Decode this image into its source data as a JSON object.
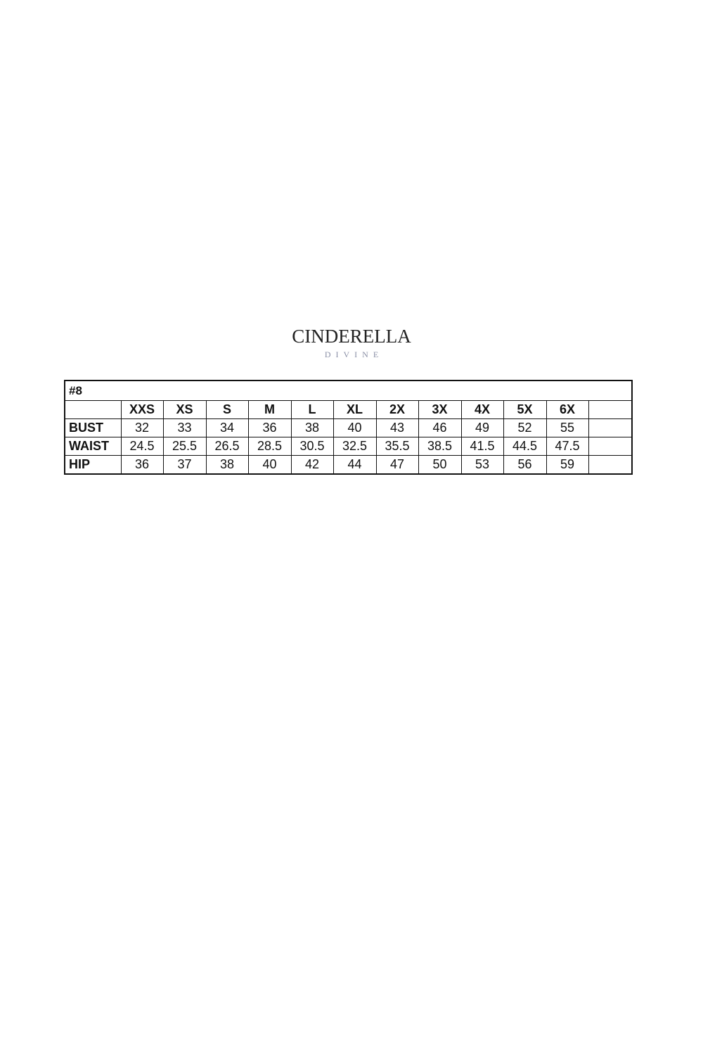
{
  "logo": {
    "brand": "CINDERELLA",
    "sub": "DIVINE"
  },
  "chart_data": {
    "type": "table",
    "title": "#8",
    "columns": [
      "XXS",
      "XS",
      "S",
      "M",
      "L",
      "XL",
      "2X",
      "3X",
      "4X",
      "5X",
      "6X",
      ""
    ],
    "rows": [
      {
        "label": "BUST",
        "values": [
          "32",
          "33",
          "34",
          "36",
          "38",
          "40",
          "43",
          "46",
          "49",
          "52",
          "55",
          ""
        ]
      },
      {
        "label": "WAIST",
        "values": [
          "24.5",
          "25.5",
          "26.5",
          "28.5",
          "30.5",
          "32.5",
          "35.5",
          "38.5",
          "41.5",
          "44.5",
          "47.5",
          ""
        ]
      },
      {
        "label": "HIP",
        "values": [
          "36",
          "37",
          "38",
          "40",
          "42",
          "44",
          "47",
          "50",
          "53",
          "56",
          "59",
          ""
        ]
      }
    ]
  }
}
